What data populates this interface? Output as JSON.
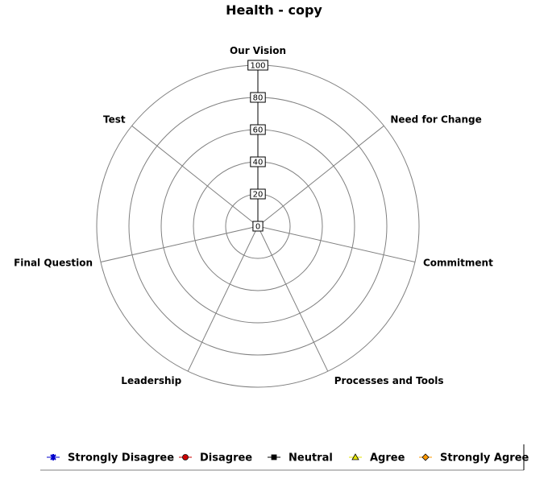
{
  "chart_data": {
    "type": "radar",
    "title": "Health - copy",
    "axes": [
      "Our Vision",
      "Need for Change",
      "Commitment",
      "Processes and Tools",
      "Leadership",
      "Final Question",
      "Test"
    ],
    "rlim": [
      0,
      100
    ],
    "ticks": [
      0,
      20,
      40,
      60,
      80,
      100
    ],
    "grid": true,
    "legend_position": "bottom",
    "series": [
      {
        "name": "Strongly Disagree",
        "color": "#0000cc",
        "marker": "star",
        "values": []
      },
      {
        "name": "Disagree",
        "color": "#cc0000",
        "marker": "circle",
        "values": []
      },
      {
        "name": "Neutral",
        "color": "#000000",
        "marker": "square",
        "values": []
      },
      {
        "name": "Agree",
        "color": "#e6e600",
        "marker": "triangle",
        "values": []
      },
      {
        "name": "Strongly Agree",
        "color": "#ff9900",
        "marker": "diamond",
        "values": []
      }
    ]
  }
}
